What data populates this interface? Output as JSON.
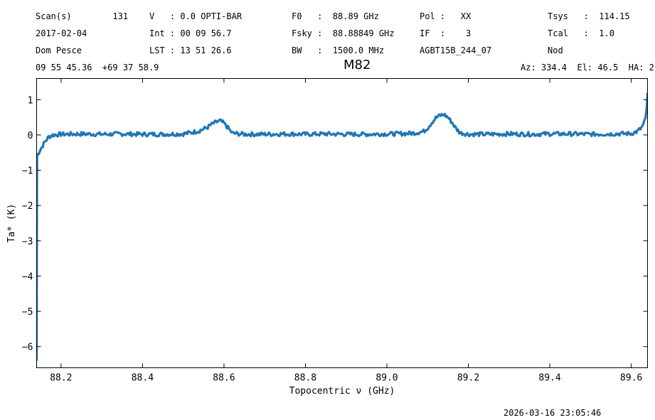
{
  "header": {
    "scan": "Scan(s)        131",
    "date": "2017-02-04",
    "observer": "Dom Pesce",
    "coords": "09 55 45.36  +69 37 58.9",
    "velocity": "V   : 0.0 OPTI-BAR",
    "int_time": "Int : 00 09 56.7",
    "lst": "LST : 13 51 26.6",
    "f0": "F0   :  88.89 GHz",
    "fsky": "Fsky :  88.88849 GHz",
    "bw": "BW   :  1500.0 MHz",
    "pol": "Pol :   XX",
    "if": "IF  :    3",
    "project": "AGBT15B_244_07",
    "tsys": "Tsys   :  114.15",
    "tcal": "Tcal   :  1.0",
    "procedure": "Nod",
    "azel": "Az: 334.4  El: 46.5  HA: 2"
  },
  "timestamp": "2026-03-16 23:05:46",
  "chart_data": {
    "type": "line",
    "title": "M82",
    "xlabel": "Topocentric ν (GHz)",
    "ylabel": "Ta* (K)",
    "xlim": [
      88.14,
      89.64
    ],
    "ylim": [
      -6.6,
      1.6
    ],
    "xticks": [
      88.2,
      88.4,
      88.6,
      88.8,
      89.0,
      89.2,
      89.4,
      89.6
    ],
    "xtick_labels": [
      "88.2",
      "88.4",
      "88.6",
      "88.8",
      "89.0",
      "89.2",
      "89.4",
      "89.6"
    ],
    "yticks": [
      1,
      0,
      -1,
      -2,
      -3,
      -4,
      -5,
      -6
    ],
    "ytick_labels": [
      "1",
      "0",
      "−1",
      "−2",
      "−3",
      "−4",
      "−5",
      "−6"
    ],
    "color": "#1f77b4",
    "series": [
      {
        "x": [
          88.14,
          88.141,
          88.145,
          88.15,
          88.16,
          88.17,
          88.18,
          88.2,
          88.25,
          88.3,
          88.35,
          88.4,
          88.45,
          88.49,
          88.5,
          88.51,
          88.52,
          88.54,
          88.56,
          88.57,
          88.58,
          88.59,
          88.6,
          88.61,
          88.62,
          88.65,
          88.7,
          88.75,
          88.8,
          88.85,
          88.9,
          88.95,
          89.0,
          89.05,
          89.07,
          89.09,
          89.1,
          89.11,
          89.12,
          89.13,
          89.14,
          89.15,
          89.16,
          89.17,
          89.18,
          89.2,
          89.25,
          89.3,
          89.35,
          89.4,
          89.45,
          89.5,
          89.55,
          89.6,
          89.615,
          89.625,
          89.63,
          89.635,
          89.638,
          89.64
        ],
        "y": [
          -6.4,
          -0.6,
          -0.5,
          -0.4,
          -0.2,
          -0.05,
          0.0,
          0.02,
          0.03,
          0.02,
          0.03,
          0.02,
          0.02,
          0.03,
          0.03,
          0.05,
          0.07,
          0.12,
          0.22,
          0.3,
          0.36,
          0.4,
          0.33,
          0.2,
          0.05,
          0.02,
          0.02,
          0.03,
          0.02,
          0.03,
          0.02,
          0.02,
          0.03,
          0.04,
          0.06,
          0.1,
          0.2,
          0.35,
          0.48,
          0.55,
          0.58,
          0.5,
          0.35,
          0.18,
          0.06,
          0.02,
          0.02,
          0.03,
          0.02,
          0.03,
          0.03,
          0.02,
          0.03,
          0.04,
          0.1,
          0.2,
          0.3,
          0.45,
          0.8,
          1.2
        ]
      }
    ]
  }
}
